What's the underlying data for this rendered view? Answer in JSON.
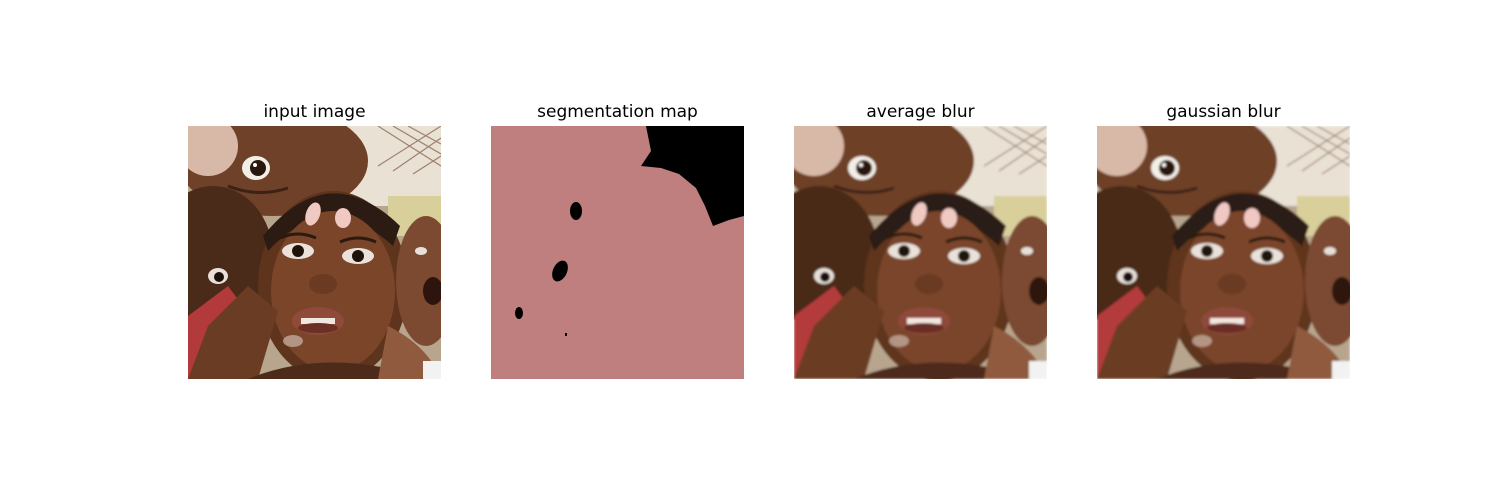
{
  "panels": [
    {
      "title": "input image"
    },
    {
      "title": "segmentation map"
    },
    {
      "title": "average blur"
    },
    {
      "title": "gaussian blur"
    }
  ],
  "colors": {
    "segmentation_foreground": "#bf7f7f",
    "segmentation_background": "#000000"
  }
}
